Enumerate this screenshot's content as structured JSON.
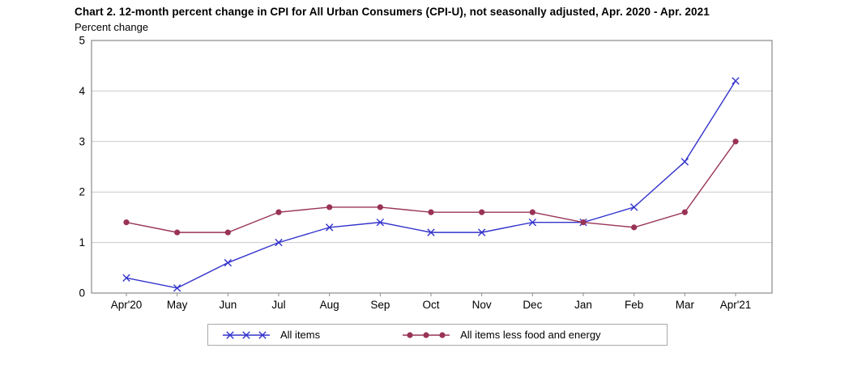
{
  "title": "Chart 2. 12-month percent change in CPI for All Urban Consumers (CPI-U), not seasonally adjusted, Apr. 2020 - Apr. 2021",
  "unit_label": "Percent change",
  "colors": {
    "all_items": "#3333cc",
    "core": "#993355",
    "gridline": "#c9c9c9",
    "frame": "#8a8a8a",
    "legend_border": "#aaaaaa"
  },
  "chart_data": {
    "type": "line",
    "title": "Chart 2. 12-month percent change in CPI for All Urban Consumers (CPI-U), not seasonally adjusted, Apr. 2020 - Apr. 2021",
    "ylabel": "Percent change",
    "xlabel": "",
    "categories": [
      "Apr'20",
      "May",
      "Jun",
      "Jul",
      "Aug",
      "Sep",
      "Oct",
      "Nov",
      "Dec",
      "Jan",
      "Feb",
      "Mar",
      "Apr'21"
    ],
    "series": [
      {
        "name": "All items",
        "color": "#3333cc",
        "marker": "x",
        "values": [
          0.3,
          0.1,
          0.6,
          1.0,
          1.3,
          1.4,
          1.2,
          1.2,
          1.4,
          1.4,
          1.7,
          2.6,
          4.2
        ]
      },
      {
        "name": "All items less food and energy",
        "color": "#993355",
        "marker": "circle",
        "values": [
          1.4,
          1.2,
          1.2,
          1.6,
          1.7,
          1.7,
          1.6,
          1.6,
          1.6,
          1.4,
          1.3,
          1.6,
          3.0
        ]
      }
    ],
    "ylim": [
      0,
      5
    ],
    "yticks": [
      0,
      1,
      2,
      3,
      4,
      5
    ],
    "grid": true,
    "legend_position": "bottom"
  }
}
